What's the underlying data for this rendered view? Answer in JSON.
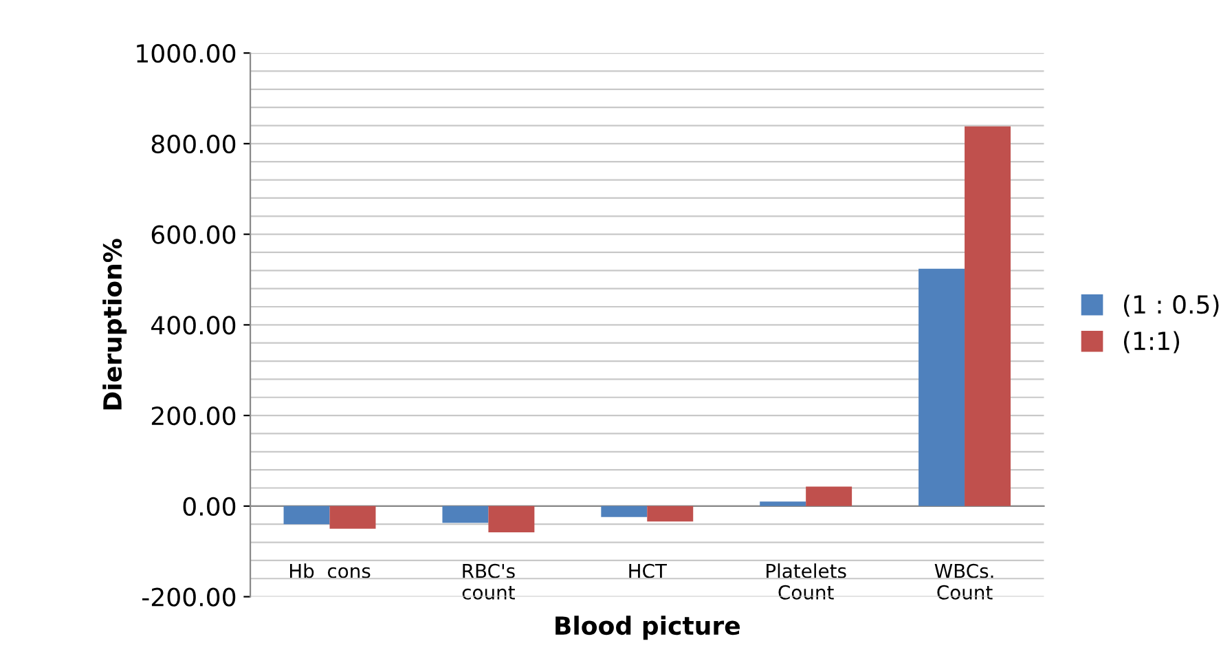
{
  "chart_data": {
    "type": "bar",
    "xlabel": "Blood picture",
    "ylabel": "Dieruption%",
    "categories": [
      "Hb  cons",
      "RBC's count",
      "HCT",
      "Platelets Count",
      "WBCs. Count"
    ],
    "series": [
      {
        "name": "(1 : 0.5)",
        "color": "#4f81bd",
        "values": [
          -40,
          -37,
          -24,
          10,
          524
        ]
      },
      {
        "name": "(1:1)",
        "color": "#c0504d",
        "values": [
          -50,
          -58,
          -34,
          43,
          838
        ]
      }
    ],
    "ylim": [
      -200,
      1000
    ],
    "yticks": [
      {
        "value": -200,
        "label": "-200.00"
      },
      {
        "value": -160,
        "label": null
      },
      {
        "value": -120,
        "label": null
      },
      {
        "value": -80,
        "label": null
      },
      {
        "value": -40,
        "label": null
      },
      {
        "value": 0,
        "label": "0.00"
      },
      {
        "value": 40,
        "label": null
      },
      {
        "value": 80,
        "label": null
      },
      {
        "value": 120,
        "label": null
      },
      {
        "value": 160,
        "label": null
      },
      {
        "value": 200,
        "label": "200.00"
      },
      {
        "value": 240,
        "label": null
      },
      {
        "value": 280,
        "label": null
      },
      {
        "value": 320,
        "label": null
      },
      {
        "value": 360,
        "label": null
      },
      {
        "value": 400,
        "label": "400.00"
      },
      {
        "value": 440,
        "label": null
      },
      {
        "value": 480,
        "label": null
      },
      {
        "value": 520,
        "label": null
      },
      {
        "value": 560,
        "label": null
      },
      {
        "value": 600,
        "label": "600.00"
      },
      {
        "value": 640,
        "label": null
      },
      {
        "value": 680,
        "label": null
      },
      {
        "value": 720,
        "label": null
      },
      {
        "value": 760,
        "label": null
      },
      {
        "value": 800,
        "label": "800.00"
      },
      {
        "value": 840,
        "label": null
      },
      {
        "value": 880,
        "label": null
      },
      {
        "value": 920,
        "label": null
      },
      {
        "value": 960,
        "label": null
      },
      {
        "value": 1000,
        "label": "1000.00"
      }
    ],
    "grid": "y",
    "legend": "right"
  }
}
